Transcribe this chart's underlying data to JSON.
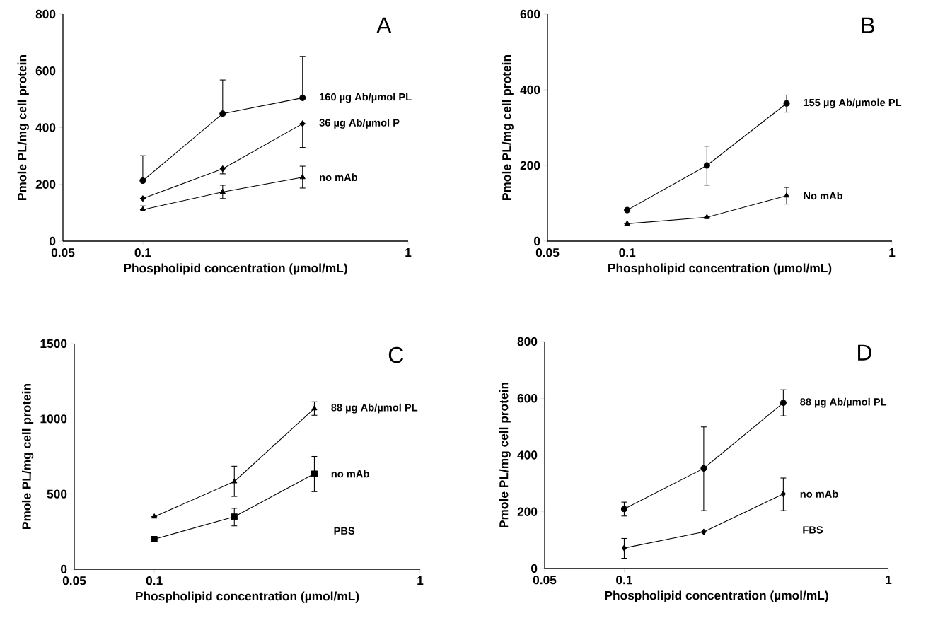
{
  "chart_data": [
    {
      "type": "line",
      "title": "A",
      "xlabel": "Phospholipid concentration (µmol/mL)",
      "ylabel": "Pmole PL/mg cell protein",
      "log": "x",
      "xlim": [
        0.05,
        1
      ],
      "xticks": [
        0.05,
        0.1,
        1
      ],
      "ylim": [
        0,
        800
      ],
      "yticks": [
        0,
        200,
        400,
        600,
        800
      ],
      "grid": false,
      "legend": false,
      "x": [
        0.1,
        0.2,
        0.4
      ],
      "series": [
        {
          "name": "160 µg Ab/µmol PL",
          "color": "#000000",
          "marker": "circle",
          "values": [
            213,
            449,
            505
          ],
          "errors": [
            [
              213,
              301
            ],
            [
              449,
              568
            ],
            [
              505,
              651
            ]
          ]
        },
        {
          "name": "36 µg Ab/µmol P",
          "color": "#000000",
          "marker": "diamond",
          "values": [
            150,
            255,
            414
          ],
          "errors": [
            null,
            [
              237,
              255
            ],
            [
              330,
              414
            ]
          ]
        },
        {
          "name": "no mAb",
          "color": "#000000",
          "marker": "triangle",
          "values": [
            111,
            173,
            225
          ],
          "errors": [
            [
              111,
              124
            ],
            [
              150,
              197
            ],
            [
              187,
              264
            ]
          ]
        }
      ]
    },
    {
      "type": "line",
      "title": "B",
      "xlabel": "Phospholipid concentration (µmol/mL)",
      "ylabel": "Pmole PL/mg cell protein",
      "log": "x",
      "xlim": [
        0.05,
        1
      ],
      "xticks": [
        0.05,
        0.1,
        1
      ],
      "ylim": [
        0,
        600
      ],
      "yticks": [
        0,
        200,
        400,
        600
      ],
      "grid": false,
      "legend": false,
      "x": [
        0.1,
        0.2,
        0.4
      ],
      "series": [
        {
          "name": "155 µg Ab/µmole PL",
          "color": "#000000",
          "marker": "circle",
          "values": [
            82,
            200,
            364
          ],
          "errors": [
            null,
            [
              148,
              251
            ],
            [
              341,
              386
            ]
          ]
        },
        {
          "name": "No mAb",
          "color": "#000000",
          "marker": "triangle",
          "values": [
            46,
            63,
            120
          ],
          "errors": [
            null,
            null,
            [
              98,
              142
            ]
          ]
        }
      ]
    },
    {
      "type": "line",
      "title": "C",
      "xlabel": "Phospholipid concentration (µmol/mL)",
      "ylabel": "Pmole PL/mg cell protein",
      "log": "x",
      "xlim": [
        0.05,
        1
      ],
      "xticks": [
        0.05,
        0.1,
        1
      ],
      "ylim": [
        0,
        1500
      ],
      "yticks": [
        0,
        500,
        1000,
        1500
      ],
      "grid": false,
      "legend": false,
      "x": [
        0.1,
        0.2,
        0.4
      ],
      "annotations": [
        "PBS"
      ],
      "series": [
        {
          "name": "88 µg Ab/µmol PL",
          "color": "#000000",
          "marker": "triangle",
          "values": [
            349,
            583,
            1069
          ],
          "errors": [
            null,
            [
              484,
              685
            ],
            [
              1024,
              1113
            ]
          ]
        },
        {
          "name": "no mAb",
          "color": "#000000",
          "marker": "square",
          "values": [
            200,
            349,
            635
          ],
          "errors": [
            null,
            [
              288,
              405
            ],
            [
              516,
              750
            ]
          ]
        }
      ]
    },
    {
      "type": "line",
      "title": "D",
      "xlabel": "Phospholipid concentration (µmol/mL)",
      "ylabel": "Pmole PL/mg cell protein",
      "log": "x",
      "xlim": [
        0.05,
        1
      ],
      "xticks": [
        0.05,
        0.1,
        1
      ],
      "ylim": [
        0,
        800
      ],
      "yticks": [
        0,
        200,
        400,
        600,
        800
      ],
      "grid": false,
      "legend": false,
      "x": [
        0.1,
        0.2,
        0.4
      ],
      "annotations": [
        "FBS"
      ],
      "series": [
        {
          "name": "88 µg Ab/µmol PL",
          "color": "#000000",
          "marker": "circle",
          "values": [
            210,
            353,
            584
          ],
          "errors": [
            [
              185,
              234
            ],
            [
              204,
              499
            ],
            [
              538,
              630
            ]
          ]
        },
        {
          "name": "no mAb",
          "color": "#000000",
          "marker": "diamond",
          "values": [
            72,
            129,
            263
          ],
          "errors": [
            [
              36,
              106
            ],
            null,
            [
              204,
              319
            ]
          ]
        }
      ]
    }
  ]
}
